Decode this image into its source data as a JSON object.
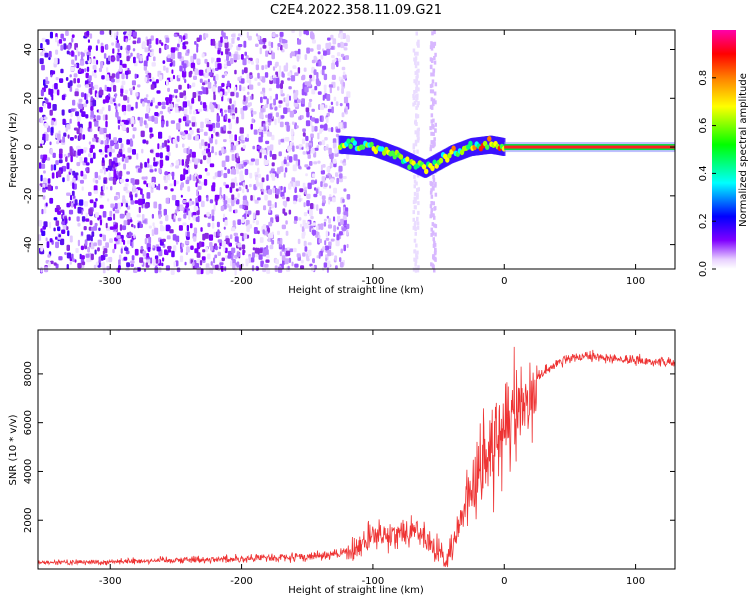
{
  "title": "C2E4.2022.358.11.09.G21",
  "chart_data": [
    {
      "type": "heatmap",
      "xlabel": "Height of straight line (km)",
      "ylabel": "Frequency (Hz)",
      "xlim": [
        -355,
        130
      ],
      "ylim": [
        -50,
        48
      ],
      "xticks": [
        -300,
        -200,
        -100,
        0,
        100
      ],
      "yticks": [
        -40,
        -20,
        0,
        20,
        40
      ],
      "colorbar": {
        "label": "Normalized spectral amplitude",
        "range": [
          0,
          1
        ],
        "ticks": [
          0.0,
          0.2,
          0.4,
          0.6,
          0.8
        ],
        "colormap": [
          "#ffffff",
          "#7f00ff",
          "#0000ff",
          "#00ffff",
          "#00ff00",
          "#ffff00",
          "#ff8000",
          "#ff0000",
          "#ff00ff"
        ]
      },
      "features": {
        "noise_region_x": [
          -355,
          -120
        ],
        "signal_track": [
          {
            "x": -125,
            "y": 1
          },
          {
            "x": -100,
            "y": 0
          },
          {
            "x": -80,
            "y": -4
          },
          {
            "x": -60,
            "y": -9
          },
          {
            "x": -50,
            "y": -6
          },
          {
            "x": -40,
            "y": -3
          },
          {
            "x": -25,
            "y": 0
          },
          {
            "x": -10,
            "y": 1
          },
          {
            "x": 0,
            "y": 0
          },
          {
            "x": 130,
            "y": 0
          }
        ],
        "steady_line_x": [
          0,
          130
        ],
        "steady_line_y": 0,
        "vertical_noise_bands_x": [
          -55,
          -68
        ]
      }
    },
    {
      "type": "line",
      "xlabel": "Height of straight line (km)",
      "ylabel": "SNR (10 * v/v)",
      "xlim": [
        -355,
        130
      ],
      "ylim": [
        0,
        9800
      ],
      "xticks": [
        -300,
        -200,
        -100,
        0,
        100
      ],
      "yticks": [
        2000,
        4000,
        6000,
        8000
      ],
      "color": "#ee3333",
      "envelope": [
        {
          "x": -355,
          "y": 250
        },
        {
          "x": -300,
          "y": 300
        },
        {
          "x": -250,
          "y": 380
        },
        {
          "x": -200,
          "y": 420
        },
        {
          "x": -150,
          "y": 500
        },
        {
          "x": -120,
          "y": 650
        },
        {
          "x": -100,
          "y": 1300
        },
        {
          "x": -80,
          "y": 1500
        },
        {
          "x": -65,
          "y": 1600
        },
        {
          "x": -55,
          "y": 900
        },
        {
          "x": -45,
          "y": 300
        },
        {
          "x": -35,
          "y": 1500
        },
        {
          "x": -25,
          "y": 3500
        },
        {
          "x": -15,
          "y": 4500
        },
        {
          "x": -5,
          "y": 5200
        },
        {
          "x": 10,
          "y": 6300
        },
        {
          "x": 25,
          "y": 7800
        },
        {
          "x": 40,
          "y": 8500
        },
        {
          "x": 60,
          "y": 8700
        },
        {
          "x": 80,
          "y": 8650
        },
        {
          "x": 100,
          "y": 8550
        },
        {
          "x": 130,
          "y": 8450
        }
      ]
    }
  ]
}
